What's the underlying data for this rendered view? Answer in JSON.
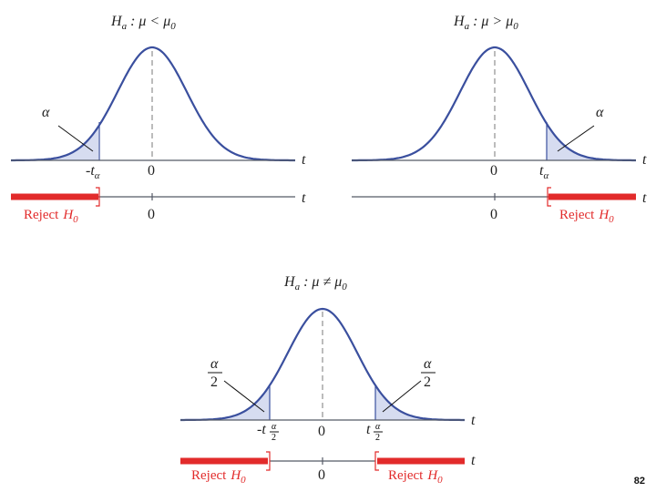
{
  "panels": {
    "left": {
      "hypothesis": {
        "H": "H",
        "sub": "a",
        "rel": " : μ < μ",
        "rsub": "0"
      },
      "alpha": "α",
      "crit": {
        "pre": "-t",
        "sub": "α"
      },
      "zero": "0",
      "t": "t",
      "reject": {
        "word": "Reject",
        "H": "H",
        "sub": "0"
      }
    },
    "right": {
      "hypothesis": {
        "H": "H",
        "sub": "a",
        "rel": " : μ > μ",
        "rsub": "0"
      },
      "alpha": "α",
      "crit": {
        "pre": "t",
        "sub": "α"
      },
      "zero": "0",
      "t": "t",
      "reject": {
        "word": "Reject",
        "H": "H",
        "sub": "0"
      }
    },
    "bottom": {
      "hypothesis": {
        "H": "H",
        "sub": "a",
        "rel": " : μ ≠ μ",
        "rsub": "0"
      },
      "alpha_num": "α",
      "alpha_den": "2",
      "crit_left": {
        "pre": "-t",
        "num": "α",
        "den": "2"
      },
      "crit_right": {
        "pre": "t",
        "num": "α",
        "den": "2"
      },
      "zero": "0",
      "t": "t",
      "reject": {
        "word": "Reject",
        "H": "H",
        "sub": "0"
      }
    }
  },
  "page_number": "82",
  "colors": {
    "curve": "#3a4f9e",
    "tail_fill": "#d6dcf0",
    "reject": "#e22b2b"
  }
}
